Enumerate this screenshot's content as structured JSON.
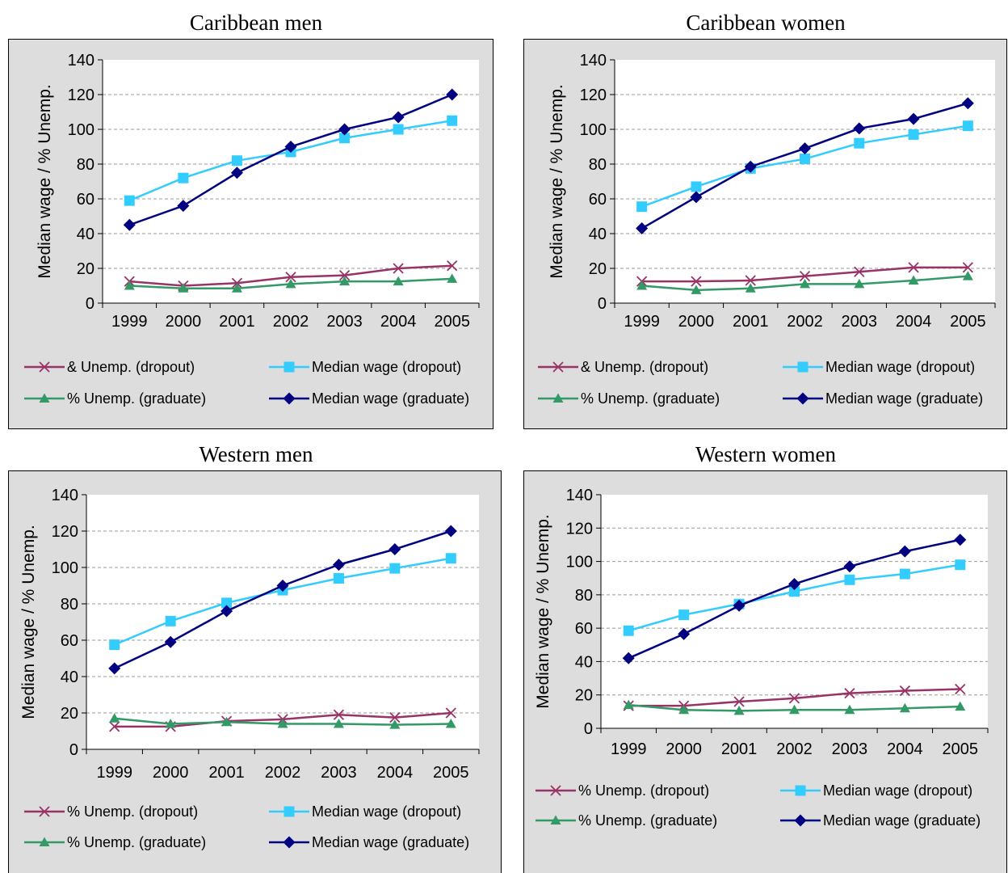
{
  "colors": {
    "unemp_dropout": "#993366",
    "wage_dropout": "#33CCFF",
    "unemp_graduate": "#339966",
    "wage_graduate": "#000080",
    "plot_bg": "#FFFFFF",
    "frame_bg": "#DDDDDD",
    "grid": "#999999"
  },
  "chart_data": [
    {
      "type": "line",
      "title": "Caribbean men",
      "ylabel": "Median wage / % Unemp.",
      "ylim": [
        0,
        140
      ],
      "yticks": [
        0,
        20,
        40,
        60,
        80,
        100,
        120,
        140
      ],
      "categories": [
        "1999",
        "2000",
        "2001",
        "2002",
        "2003",
        "2004",
        "2005"
      ],
      "legend_position": "bottom",
      "series": [
        {
          "name": "& Unemp. (dropout)",
          "marker": "x",
          "color_key": "unemp_dropout",
          "values": [
            12.5,
            10,
            11.5,
            15,
            16,
            20,
            21.5
          ]
        },
        {
          "name": "Median wage (dropout)",
          "marker": "square",
          "color_key": "wage_dropout",
          "values": [
            59,
            72,
            82,
            87,
            95,
            100,
            105
          ]
        },
        {
          "name": "% Unemp. (graduate)",
          "marker": "triangle",
          "color_key": "unemp_graduate",
          "values": [
            10,
            8.5,
            8.5,
            11,
            12.5,
            12.5,
            14
          ]
        },
        {
          "name": "Median wage (graduate)",
          "marker": "diamond",
          "color_key": "wage_graduate",
          "values": [
            45,
            56,
            75,
            90,
            100,
            107,
            120
          ]
        }
      ]
    },
    {
      "type": "line",
      "title": "Caribbean women",
      "ylabel": "Median wage / % Unemp.",
      "ylim": [
        0,
        140
      ],
      "yticks": [
        0,
        20,
        40,
        60,
        80,
        100,
        120,
        140
      ],
      "categories": [
        "1999",
        "2000",
        "2001",
        "2002",
        "2003",
        "2004",
        "2005"
      ],
      "legend_position": "bottom",
      "series": [
        {
          "name": "& Unemp. (dropout)",
          "marker": "x",
          "color_key": "unemp_dropout",
          "values": [
            12.5,
            12.5,
            13,
            15.5,
            18,
            20.5,
            20.5
          ]
        },
        {
          "name": "Median wage (dropout)",
          "marker": "square",
          "color_key": "wage_dropout",
          "values": [
            55.5,
            67,
            77.5,
            83,
            92,
            97,
            102
          ]
        },
        {
          "name": "% Unemp. (graduate)",
          "marker": "triangle",
          "color_key": "unemp_graduate",
          "values": [
            10,
            7.5,
            8.5,
            11,
            11,
            13,
            15.5
          ]
        },
        {
          "name": "Median wage (graduate)",
          "marker": "diamond",
          "color_key": "wage_graduate",
          "values": [
            43,
            61,
            78.5,
            89,
            100.5,
            106,
            115
          ]
        }
      ]
    },
    {
      "type": "line",
      "title": "Western men",
      "ylabel": "Median wage / % Unemp.",
      "ylim": [
        0,
        140
      ],
      "yticks": [
        0,
        20,
        40,
        60,
        80,
        100,
        120,
        140
      ],
      "categories": [
        "1999",
        "2000",
        "2001",
        "2002",
        "2003",
        "2004",
        "2005"
      ],
      "legend_position": "bottom",
      "series": [
        {
          "name": "% Unemp. (dropout)",
          "marker": "x",
          "color_key": "unemp_dropout",
          "values": [
            12.5,
            12.5,
            15.5,
            16.5,
            19,
            17.5,
            20
          ]
        },
        {
          "name": "Median wage (dropout)",
          "marker": "square",
          "color_key": "wage_dropout",
          "values": [
            57.5,
            70.5,
            80.5,
            87.5,
            94,
            99.5,
            105
          ]
        },
        {
          "name": "% Unemp. (graduate)",
          "marker": "triangle",
          "color_key": "unemp_graduate",
          "values": [
            17,
            14,
            15,
            14,
            14,
            13.5,
            14
          ]
        },
        {
          "name": "Median wage (graduate)",
          "marker": "diamond",
          "color_key": "wage_graduate",
          "values": [
            44.5,
            59,
            76,
            90,
            101.5,
            110,
            120
          ]
        }
      ]
    },
    {
      "type": "line",
      "title": "Western women",
      "ylabel": "Median wage / % Unemp.",
      "ylim": [
        0,
        140
      ],
      "yticks": [
        0,
        20,
        40,
        60,
        80,
        100,
        120,
        140
      ],
      "categories": [
        "1999",
        "2000",
        "2001",
        "2002",
        "2003",
        "2004",
        "2005"
      ],
      "legend_position": "bottom",
      "series": [
        {
          "name": "% Unemp. (dropout)",
          "marker": "x",
          "color_key": "unemp_dropout",
          "values": [
            13.5,
            13.5,
            16,
            18,
            21,
            22.5,
            23.5
          ]
        },
        {
          "name": "Median wage (dropout)",
          "marker": "square",
          "color_key": "wage_dropout",
          "values": [
            58.5,
            68,
            74.5,
            82,
            89,
            92.5,
            98
          ]
        },
        {
          "name": "% Unemp. (graduate)",
          "marker": "triangle",
          "color_key": "unemp_graduate",
          "values": [
            14,
            11,
            10.5,
            11,
            11,
            12,
            13
          ]
        },
        {
          "name": "Median wage (graduate)",
          "marker": "diamond",
          "color_key": "wage_graduate",
          "values": [
            42,
            56.5,
            73.5,
            86.5,
            97,
            106,
            113
          ]
        }
      ]
    }
  ]
}
